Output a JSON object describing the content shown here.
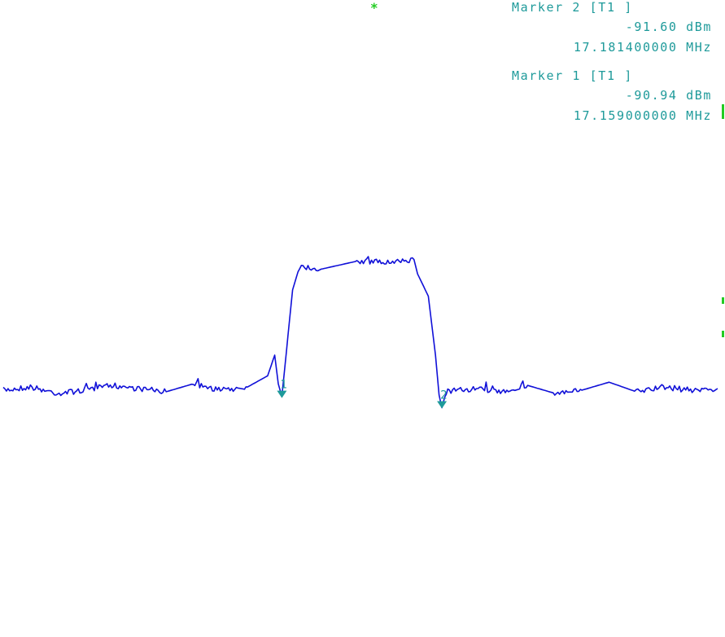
{
  "markers": [
    {
      "title": "Marker 2 [T1 ]",
      "level": "-91.60 dBm",
      "freq": "17.181400000 MHz"
    },
    {
      "title": "Marker 1 [T1 ]",
      "level": "-90.94 dBm",
      "freq": "17.159000000 MHz"
    }
  ],
  "status_symbol": "*",
  "colors": {
    "trace": "#1010d8",
    "marker": "#1e9a9a",
    "indicator": "#22cc22"
  },
  "chart_data": {
    "type": "line",
    "title": "",
    "xlabel": "",
    "ylabel": "",
    "grid": false,
    "legend": "none",
    "x_unit": "MHz",
    "y_unit": "dBm",
    "xlim": [
      17.12,
      17.22
    ],
    "ylim": [
      -106.0,
      -66.0
    ],
    "series": [
      {
        "x": [
          17.12,
          17.1238,
          17.1276,
          17.1314,
          17.1352,
          17.139,
          17.1428,
          17.1466,
          17.1504,
          17.1542,
          17.157,
          17.158,
          17.1585,
          17.159,
          17.1605,
          17.1615,
          17.1645,
          17.1695,
          17.1745,
          17.1775,
          17.178,
          17.1795,
          17.1805,
          17.181,
          17.1814,
          17.182,
          17.1858,
          17.1896,
          17.1934,
          17.1972,
          17.201,
          17.2048,
          17.2086,
          17.2124,
          17.2162,
          17.22
        ],
        "values": [
          -90.5,
          -90.3,
          -90.7,
          -90.5,
          -90.2,
          -90.4,
          -90.6,
          -90.1,
          -90.5,
          -90.3,
          -89.6,
          -88.3,
          -90.1,
          -90.9,
          -84.2,
          -82.7,
          -82.9,
          -82.4,
          -82.5,
          -82.3,
          -83.2,
          -84.6,
          -88.3,
          -90.8,
          -91.6,
          -90.6,
          -90.4,
          -90.6,
          -90.2,
          -90.7,
          -90.5,
          -90.0,
          -90.6,
          -90.3,
          -90.5,
          -90.4
        ]
      }
    ],
    "marker_points": [
      {
        "label": "1",
        "x": 17.159,
        "y": -90.94
      },
      {
        "label": "2",
        "x": 17.1814,
        "y": -91.6
      }
    ]
  }
}
